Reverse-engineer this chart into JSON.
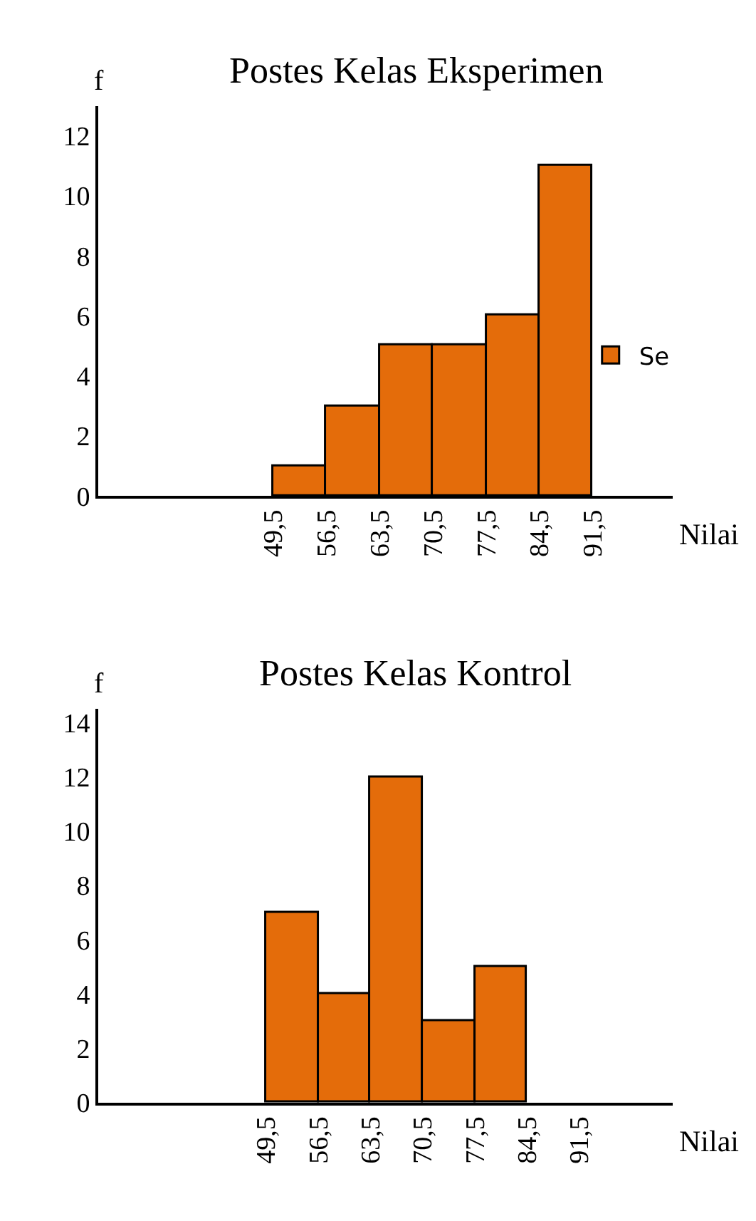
{
  "chart_data": [
    {
      "type": "histogram",
      "title": "Postes Kelas Eksperimen",
      "xlabel": "Nilai",
      "ylabel": "f",
      "bins": [
        49.5,
        56.5,
        63.5,
        70.5,
        77.5,
        84.5,
        91.5
      ],
      "series": [
        {
          "name": "Se",
          "color": "#e46c0a",
          "values": [
            1,
            3,
            5,
            5,
            6,
            11
          ]
        }
      ],
      "xlim": [
        26.5,
        102
      ],
      "xticks": [
        {
          "value": 49.5,
          "label": "49,5"
        },
        {
          "value": 56.5,
          "label": "56,5"
        },
        {
          "value": 63.5,
          "label": "63,5"
        },
        {
          "value": 70.5,
          "label": "70,5"
        },
        {
          "value": 77.5,
          "label": "77,5"
        },
        {
          "value": 84.5,
          "label": "84,5"
        },
        {
          "value": 91.5,
          "label": "91,5"
        }
      ],
      "ylim": [
        0,
        13
      ],
      "yticks": [
        0,
        2,
        4,
        6,
        8,
        10,
        12
      ],
      "legend": "right"
    },
    {
      "type": "histogram",
      "title": "Postes Kelas Kontrol",
      "xlabel": "Nilai",
      "ylabel": "f",
      "bins": [
        49.5,
        56.5,
        63.5,
        70.5,
        77.5,
        84.5
      ],
      "series": [
        {
          "color": "#e46c0a",
          "values": [
            7,
            4,
            12,
            3,
            5
          ]
        }
      ],
      "xlim": [
        27,
        104
      ],
      "xticks": [
        {
          "value": 49.5,
          "label": "49,5"
        },
        {
          "value": 56.5,
          "label": "56,5"
        },
        {
          "value": 63.5,
          "label": "63,5"
        },
        {
          "value": 70.5,
          "label": "70,5"
        },
        {
          "value": 77.5,
          "label": "77,5"
        },
        {
          "value": 84.5,
          "label": "84,5"
        },
        {
          "value": 91.5,
          "label": "91,5"
        }
      ],
      "ylim": [
        0,
        14.5
      ],
      "yticks": [
        0,
        2,
        4,
        6,
        8,
        10,
        12,
        14
      ],
      "legend": false
    }
  ]
}
